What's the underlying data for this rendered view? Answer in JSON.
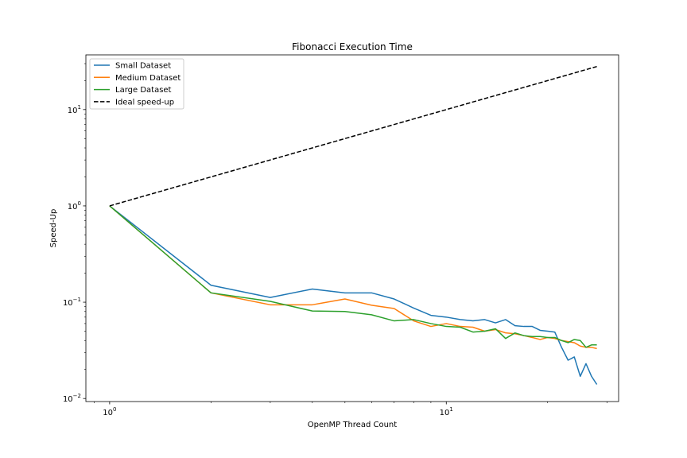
{
  "chart_data": {
    "type": "line",
    "title": "Fibonacci Execution Time",
    "xlabel": "OpenMP Thread Count",
    "ylabel": "Speed-Up",
    "xscale": "log",
    "yscale": "log",
    "xlim": [
      0.85,
      32.5
    ],
    "ylim": [
      0.0093,
      37
    ],
    "grid": false,
    "legend": "top-left",
    "x_ticks": [
      {
        "value": 1,
        "base": "10",
        "exp": "0"
      },
      {
        "value": 10,
        "base": "10",
        "exp": "1"
      }
    ],
    "y_ticks": [
      {
        "value": 0.01,
        "base": "10",
        "exp": "−2"
      },
      {
        "value": 0.1,
        "base": "10",
        "exp": "−1"
      },
      {
        "value": 1,
        "base": "10",
        "exp": "0"
      },
      {
        "value": 10,
        "base": "10",
        "exp": "1"
      }
    ],
    "series": [
      {
        "name": "Small Dataset",
        "color": "#1f77b4",
        "dash": "solid",
        "points": [
          [
            1,
            1.0
          ],
          [
            2,
            0.15
          ],
          [
            3,
            0.112
          ],
          [
            4,
            0.137
          ],
          [
            5,
            0.125
          ],
          [
            6,
            0.125
          ],
          [
            7,
            0.108
          ],
          [
            8,
            0.087
          ],
          [
            9,
            0.073
          ],
          [
            10,
            0.07
          ],
          [
            11,
            0.066
          ],
          [
            12,
            0.064
          ],
          [
            13,
            0.066
          ],
          [
            14,
            0.061
          ],
          [
            15,
            0.066
          ],
          [
            16,
            0.057
          ],
          [
            17,
            0.056
          ],
          [
            18,
            0.056
          ],
          [
            19,
            0.051
          ],
          [
            20,
            0.05
          ],
          [
            21,
            0.049
          ],
          [
            22,
            0.034
          ],
          [
            23,
            0.025
          ],
          [
            24,
            0.027
          ],
          [
            25,
            0.017
          ],
          [
            26,
            0.023
          ],
          [
            27,
            0.017
          ],
          [
            28,
            0.014
          ]
        ]
      },
      {
        "name": "Medium Dataset",
        "color": "#ff7f0e",
        "dash": "solid",
        "points": [
          [
            1,
            1.0
          ],
          [
            2,
            0.125
          ],
          [
            3,
            0.094
          ],
          [
            4,
            0.094
          ],
          [
            5,
            0.108
          ],
          [
            6,
            0.093
          ],
          [
            7,
            0.086
          ],
          [
            8,
            0.064
          ],
          [
            9,
            0.056
          ],
          [
            10,
            0.06
          ],
          [
            11,
            0.056
          ],
          [
            12,
            0.055
          ],
          [
            13,
            0.05
          ],
          [
            14,
            0.052
          ],
          [
            15,
            0.048
          ],
          [
            16,
            0.047
          ],
          [
            17,
            0.045
          ],
          [
            18,
            0.043
          ],
          [
            19,
            0.041
          ],
          [
            20,
            0.043
          ],
          [
            21,
            0.042
          ],
          [
            22,
            0.04
          ],
          [
            23,
            0.039
          ],
          [
            24,
            0.038
          ],
          [
            25,
            0.035
          ],
          [
            26,
            0.034
          ],
          [
            27,
            0.034
          ],
          [
            28,
            0.033
          ]
        ]
      },
      {
        "name": "Large Dataset",
        "color": "#2ca02c",
        "dash": "solid",
        "points": [
          [
            1,
            1.0
          ],
          [
            2,
            0.125
          ],
          [
            3,
            0.102
          ],
          [
            4,
            0.081
          ],
          [
            5,
            0.08
          ],
          [
            6,
            0.074
          ],
          [
            7,
            0.064
          ],
          [
            8,
            0.066
          ],
          [
            9,
            0.06
          ],
          [
            10,
            0.056
          ],
          [
            11,
            0.055
          ],
          [
            12,
            0.049
          ],
          [
            13,
            0.05
          ],
          [
            14,
            0.053
          ],
          [
            15,
            0.042
          ],
          [
            16,
            0.048
          ],
          [
            17,
            0.045
          ],
          [
            18,
            0.044
          ],
          [
            19,
            0.044
          ],
          [
            20,
            0.043
          ],
          [
            21,
            0.043
          ],
          [
            22,
            0.04
          ],
          [
            23,
            0.038
          ],
          [
            24,
            0.041
          ],
          [
            25,
            0.04
          ],
          [
            26,
            0.034
          ],
          [
            27,
            0.036
          ],
          [
            28,
            0.036
          ]
        ]
      },
      {
        "name": "Ideal speed-up",
        "color": "#000000",
        "dash": "dashed",
        "points": [
          [
            1,
            1
          ],
          [
            28,
            28
          ]
        ]
      }
    ]
  }
}
